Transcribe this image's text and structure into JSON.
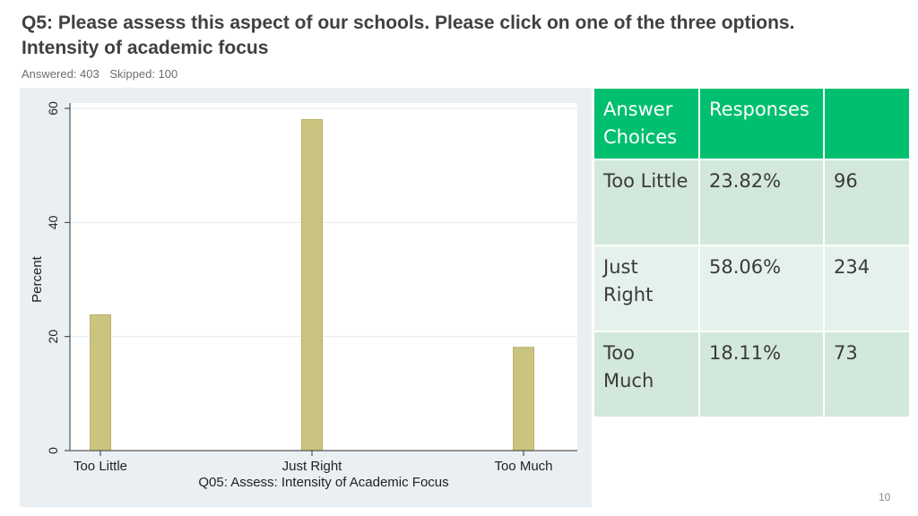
{
  "header": {
    "title_line1": "Q5: Please assess this aspect of our schools. Please click on one of the three options.",
    "title_line2": "Intensity of academic focus",
    "answered_label": "Answered: 403",
    "skipped_label": "Skipped: 100"
  },
  "chart_data": {
    "type": "bar",
    "categories": [
      "Too Little",
      "Just Right",
      "Too Much"
    ],
    "values": [
      23.82,
      58.06,
      18.11
    ],
    "xlabel": "Q05: Assess: Intensity of Academic Focus",
    "ylabel": "Percent",
    "ylim": [
      0,
      60
    ],
    "yticks": [
      "0",
      "20",
      "40",
      "60"
    ],
    "grid": true,
    "bar_color": "#c9c47f"
  },
  "table": {
    "headers": [
      "Answer Choices",
      "Responses",
      ""
    ],
    "rows": [
      {
        "choice": "Too Little",
        "percent": "23.82%",
        "count": "96"
      },
      {
        "choice": "Just Right",
        "percent": "58.06%",
        "count": "234"
      },
      {
        "choice": "Too Much",
        "percent": "18.11%",
        "count": "73"
      }
    ],
    "header_color": "#00bf6f"
  },
  "footer": {
    "page_number": "10"
  }
}
